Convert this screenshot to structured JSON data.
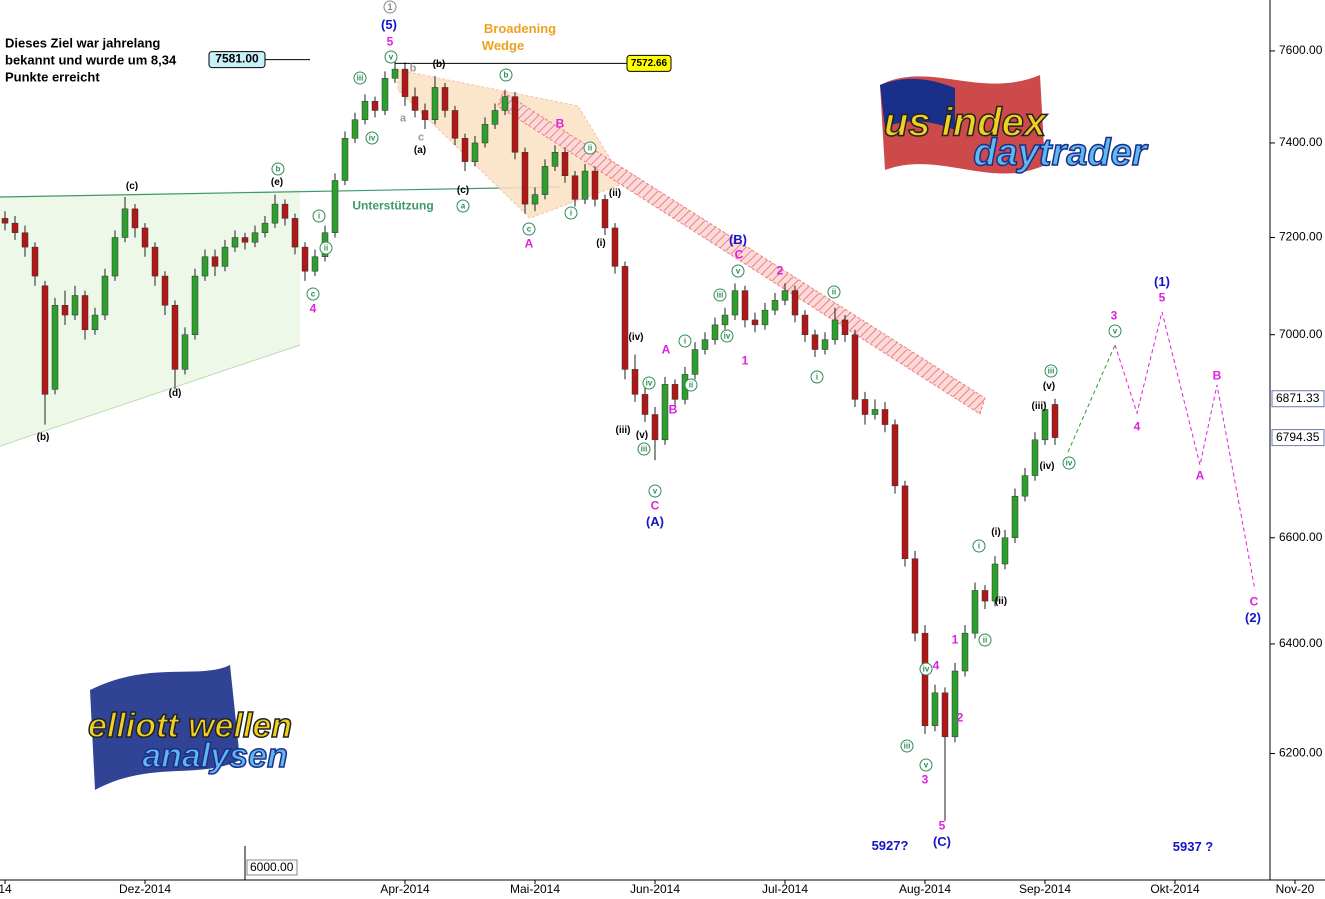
{
  "chart_data": {
    "type": "candlestick",
    "note": [
      "Dieses Ziel war jahrelang",
      "bekannt und wurde um 8,34",
      "Punkte erreicht"
    ],
    "categories": [
      "14",
      null,
      null,
      null,
      null,
      null,
      null,
      null,
      null,
      null,
      null,
      null,
      null,
      null,
      "Dez-2014",
      null,
      null,
      null,
      null,
      null,
      null,
      null,
      null,
      null,
      null,
      null,
      null,
      null,
      null,
      null,
      null,
      null,
      null,
      null,
      null,
      null,
      null,
      null,
      null,
      null,
      "Apr-2014",
      null,
      null,
      null,
      null,
      null,
      null,
      null,
      null,
      null,
      null,
      null,
      null,
      "Mai-2014",
      null,
      null,
      null,
      null,
      null,
      null,
      null,
      null,
      null,
      null,
      null,
      "Jun-2014",
      null,
      null,
      null,
      null,
      null,
      null,
      null,
      null,
      null,
      null,
      null,
      null,
      "Jul-2014",
      null,
      null,
      null,
      null,
      null,
      null,
      null,
      null,
      null,
      null,
      null,
      null,
      null,
      "Aug-2014",
      null,
      null,
      null,
      null,
      null,
      null,
      null,
      null,
      null,
      null,
      null,
      "Sep-2014",
      null,
      null,
      null,
      null,
      null,
      null,
      null,
      null,
      null,
      null,
      null,
      null,
      "Okt-2014",
      null,
      null,
      null,
      null,
      null,
      null,
      null,
      null,
      null,
      null,
      null,
      "Nov-20",
      null,
      null
    ],
    "ohlc": [
      [
        7240,
        7255,
        7215,
        7230
      ],
      [
        7230,
        7245,
        7195,
        7210
      ],
      [
        7210,
        7225,
        7160,
        7180
      ],
      [
        7180,
        7190,
        7100,
        7120
      ],
      [
        7100,
        7110,
        6820,
        6880
      ],
      [
        6890,
        7075,
        6880,
        7060
      ],
      [
        7060,
        7090,
        7020,
        7040
      ],
      [
        7040,
        7100,
        7030,
        7080
      ],
      [
        7080,
        7090,
        6990,
        7010
      ],
      [
        7010,
        7055,
        7000,
        7040
      ],
      [
        7040,
        7135,
        7030,
        7120
      ],
      [
        7120,
        7215,
        7110,
        7200
      ],
      [
        7200,
        7285,
        7190,
        7260
      ],
      [
        7260,
        7270,
        7200,
        7220
      ],
      [
        7220,
        7230,
        7160,
        7180
      ],
      [
        7180,
        7190,
        7100,
        7120
      ],
      [
        7120,
        7130,
        7040,
        7060
      ],
      [
        7060,
        7070,
        6890,
        6930
      ],
      [
        6930,
        7015,
        6920,
        7000
      ],
      [
        7000,
        7135,
        6990,
        7120
      ],
      [
        7120,
        7175,
        7110,
        7160
      ],
      [
        7160,
        7175,
        7120,
        7140
      ],
      [
        7140,
        7195,
        7130,
        7180
      ],
      [
        7180,
        7215,
        7170,
        7200
      ],
      [
        7200,
        7210,
        7175,
        7190
      ],
      [
        7190,
        7225,
        7180,
        7210
      ],
      [
        7210,
        7245,
        7200,
        7230
      ],
      [
        7230,
        7290,
        7220,
        7270
      ],
      [
        7270,
        7280,
        7225,
        7240
      ],
      [
        7240,
        7250,
        7165,
        7180
      ],
      [
        7180,
        7190,
        7110,
        7130
      ],
      [
        7130,
        7175,
        7120,
        7160
      ],
      [
        7160,
        7225,
        7150,
        7210
      ],
      [
        7210,
        7335,
        7200,
        7320
      ],
      [
        7320,
        7425,
        7310,
        7410
      ],
      [
        7410,
        7465,
        7400,
        7450
      ],
      [
        7450,
        7505,
        7440,
        7490
      ],
      [
        7490,
        7500,
        7455,
        7470
      ],
      [
        7470,
        7555,
        7460,
        7540
      ],
      [
        7540,
        7581,
        7530,
        7560
      ],
      [
        7560,
        7575,
        7480,
        7500
      ],
      [
        7500,
        7520,
        7455,
        7470
      ],
      [
        7470,
        7485,
        7430,
        7450
      ],
      [
        7450,
        7545,
        7440,
        7520
      ],
      [
        7520,
        7530,
        7455,
        7470
      ],
      [
        7470,
        7480,
        7395,
        7410
      ],
      [
        7410,
        7420,
        7340,
        7360
      ],
      [
        7360,
        7415,
        7350,
        7400
      ],
      [
        7400,
        7455,
        7390,
        7440
      ],
      [
        7440,
        7485,
        7430,
        7470
      ],
      [
        7470,
        7515,
        7460,
        7500
      ],
      [
        7500,
        7510,
        7365,
        7380
      ],
      [
        7380,
        7390,
        7250,
        7270
      ],
      [
        7270,
        7305,
        7255,
        7290
      ],
      [
        7290,
        7365,
        7280,
        7350
      ],
      [
        7350,
        7395,
        7340,
        7380
      ],
      [
        7380,
        7390,
        7315,
        7330
      ],
      [
        7330,
        7340,
        7265,
        7280
      ],
      [
        7280,
        7355,
        7270,
        7340
      ],
      [
        7340,
        7350,
        7265,
        7280
      ],
      [
        7280,
        7290,
        7205,
        7220
      ],
      [
        7220,
        7230,
        7125,
        7140
      ],
      [
        7140,
        7150,
        6910,
        6930
      ],
      [
        6930,
        6960,
        6865,
        6880
      ],
      [
        6880,
        6895,
        6825,
        6840
      ],
      [
        6840,
        6855,
        6750,
        6790
      ],
      [
        6790,
        6915,
        6780,
        6900
      ],
      [
        6900,
        6910,
        6855,
        6870
      ],
      [
        6870,
        6935,
        6860,
        6920
      ],
      [
        6920,
        6985,
        6910,
        6970
      ],
      [
        6970,
        7005,
        6960,
        6990
      ],
      [
        6990,
        7035,
        6980,
        7020
      ],
      [
        7020,
        7055,
        7010,
        7040
      ],
      [
        7040,
        7105,
        7030,
        7090
      ],
      [
        7090,
        7100,
        7015,
        7030
      ],
      [
        7030,
        7045,
        7005,
        7020
      ],
      [
        7020,
        7065,
        7010,
        7050
      ],
      [
        7050,
        7085,
        7040,
        7070
      ],
      [
        7070,
        7105,
        7060,
        7090
      ],
      [
        7090,
        7100,
        7025,
        7040
      ],
      [
        7040,
        7050,
        6985,
        7000
      ],
      [
        7000,
        7010,
        6955,
        6970
      ],
      [
        6970,
        7005,
        6960,
        6990
      ],
      [
        6990,
        7055,
        6980,
        7030
      ],
      [
        7030,
        7040,
        6985,
        7000
      ],
      [
        7000,
        7010,
        6855,
        6870
      ],
      [
        6870,
        6885,
        6820,
        6840
      ],
      [
        6840,
        6870,
        6830,
        6850
      ],
      [
        6850,
        6865,
        6805,
        6820
      ],
      [
        6820,
        6830,
        6685,
        6700
      ],
      [
        6700,
        6710,
        6545,
        6560
      ],
      [
        6560,
        6575,
        6405,
        6420
      ],
      [
        6420,
        6435,
        6235,
        6250
      ],
      [
        6250,
        6325,
        6240,
        6310
      ],
      [
        6310,
        6320,
        6080,
        6230
      ],
      [
        6230,
        6365,
        6220,
        6350
      ],
      [
        6350,
        6435,
        6340,
        6420
      ],
      [
        6420,
        6515,
        6410,
        6500
      ],
      [
        6500,
        6510,
        6465,
        6480
      ],
      [
        6480,
        6565,
        6470,
        6550
      ],
      [
        6550,
        6615,
        6540,
        6600
      ],
      [
        6600,
        6695,
        6590,
        6680
      ],
      [
        6680,
        6735,
        6670,
        6720
      ],
      [
        6720,
        6805,
        6710,
        6790
      ],
      [
        6790,
        6865,
        6780,
        6850
      ],
      [
        6860,
        6871.33,
        6780,
        6794.35
      ],
      null,
      null,
      null,
      null,
      null,
      null,
      null,
      null,
      null,
      null,
      null,
      null,
      null,
      null,
      null,
      null,
      null,
      null,
      null,
      null,
      null,
      null,
      null,
      null,
      null,
      null
    ],
    "up_color": "#2e9e2e",
    "down_color": "#b01818",
    "ylim": [
      6036,
      7713
    ],
    "log_scale": true,
    "yticks": [
      {
        "value": 7600,
        "label": "7600.00"
      },
      {
        "value": 7400,
        "label": "7400.00"
      },
      {
        "value": 7200,
        "label": "7200.00"
      },
      {
        "value": 7000,
        "label": "7000.00"
      },
      {
        "value": 6600,
        "label": "6600.00"
      },
      {
        "value": 6400,
        "label": "6400.00"
      },
      {
        "value": 6200,
        "label": "6200.00"
      }
    ],
    "price_labels": [
      6871.33,
      6794.35
    ],
    "hlines": [
      {
        "value": 7581,
        "label": "7581.00"
      },
      {
        "value": 7572.66,
        "label": "7572.66"
      }
    ],
    "extra_label": "6000.00",
    "annotations": [
      "1",
      "(5)",
      "5",
      "v",
      "iii",
      "iv",
      "(b)",
      "b",
      "a",
      "c",
      "(a)",
      "(c)",
      "a",
      "b",
      "c",
      "A",
      "B",
      "ii",
      "(ii)",
      "i",
      "(i)",
      "(iv)",
      "(iii)",
      "(v)",
      "iii",
      "iv",
      "v",
      "C",
      "(A)",
      "A",
      "B",
      "i",
      "ii",
      "iii",
      "iv",
      "v",
      "C",
      "(B)",
      "1",
      "2",
      "ii",
      "i",
      "5927?",
      "(C)",
      "5",
      "3",
      "v",
      "iii",
      "4",
      "iv",
      "2",
      "1",
      "ii",
      "(ii)",
      "i",
      "(i)",
      "(iii)",
      "(iv)",
      "(v)",
      "iii",
      "iv",
      "3",
      "v",
      "4",
      "(1)",
      "5",
      "B",
      "A",
      "C",
      "(2)",
      "(c)",
      "(e)",
      "b",
      "(b)",
      "(d)",
      "c",
      "4",
      "i",
      "ii",
      "Broadening",
      "Wedge",
      "Unterstützung",
      "5937 ?"
    ],
    "logos": {
      "us_index": [
        "us index",
        "daytrader"
      ],
      "elliott": [
        "elliott wellen",
        "analysen"
      ]
    }
  }
}
